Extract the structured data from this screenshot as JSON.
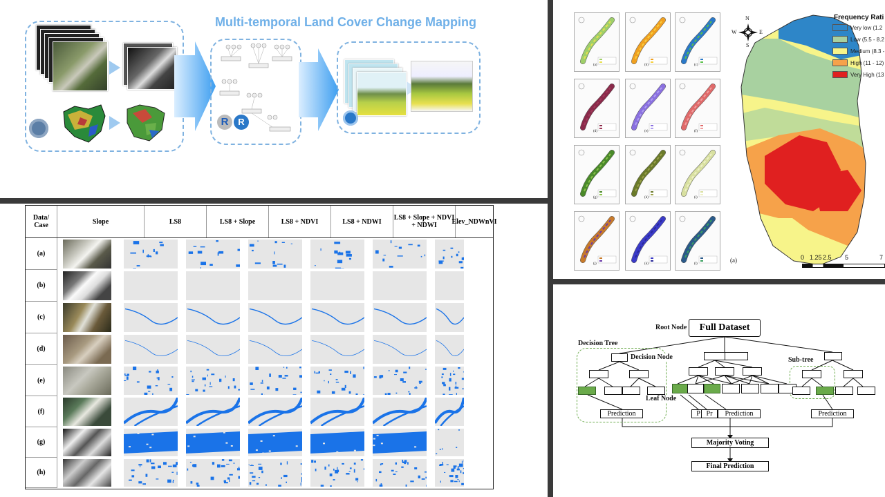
{
  "flowchart": {
    "title": "Multi-temporal Land Cover Change Mapping",
    "r_label": "R",
    "colors": {
      "accent": "#6fb0e8",
      "dash": "#7fb2e0"
    }
  },
  "table": {
    "headers": [
      "Data/ Case",
      "Slope",
      "LS8",
      "LS8 + Slope",
      "LS8 + NDVI",
      "LS8 + NDWI",
      "LS8 + Slope + NDVI + NDWI",
      "Elev_NDWnVI"
    ],
    "rows": [
      "(a)",
      "(b)",
      "(c)",
      "(d)",
      "(e)",
      "(f)",
      "(g)",
      "(h)"
    ],
    "colors": {
      "water": "#1a73e8",
      "empty": "#e6e6e6"
    }
  },
  "maps": {
    "panel_labels": [
      "(a)",
      "(b)",
      "(c)",
      "(d)",
      "(e)",
      "(f)",
      "(g)",
      "(h)",
      "(i)",
      "(j)",
      "(k)",
      "(l)"
    ],
    "big_label": "(a)",
    "legend_title": "Frequency Rati",
    "legend": [
      {
        "label": "Very low (1.2",
        "color": "#2e86c8"
      },
      {
        "label": "Low (5.5 - 8.2",
        "color": "#a8d1a0"
      },
      {
        "label": "Medium (8.3 -",
        "color": "#f7f48a"
      },
      {
        "label": "High (11 - 12)",
        "color": "#f6a24a"
      },
      {
        "label": "Very High (13",
        "color": "#e02020"
      }
    ],
    "scale_ticks": [
      "0",
      "1.25",
      "2.5",
      "5",
      "7"
    ],
    "compass": {
      "n": "N",
      "s": "S",
      "e": "E",
      "w": "W"
    }
  },
  "tree": {
    "root_node_label": "Root Node",
    "full_dataset": "Full Dataset",
    "decision_tree": "Decision Tree",
    "decision_node": "Decision Node",
    "sub_tree": "Sub-tree",
    "leaf_node": "Leaf Node",
    "prediction": "Prediction",
    "p_short": "P",
    "pr_short": "Pr",
    "majority_voting": "Majority Voting",
    "final_prediction": "Final Prediction",
    "colors": {
      "leaf": "#6aaa4a",
      "subtree_dash": "#6aaa4a"
    }
  }
}
